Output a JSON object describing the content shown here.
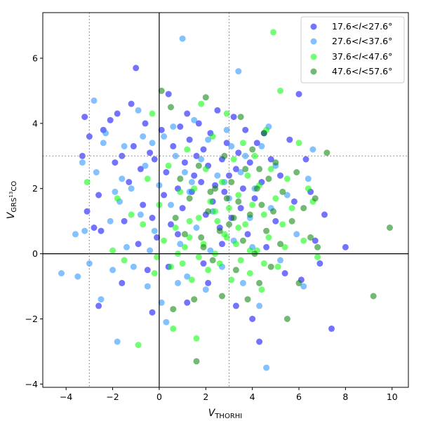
{
  "chart_data": {
    "type": "scatter",
    "xlabel": "V",
    "xlabel_sub": "THORHI",
    "ylabel": "V",
    "ylabel_sub": "GRS",
    "ylabel_sup": "13",
    "ylabel_sub2": "CO",
    "xlim": [
      -5,
      10.7
    ],
    "ylim": [
      -4.1,
      7.4
    ],
    "x_ticks": [
      -4,
      -2,
      0,
      2,
      4,
      6,
      8,
      10
    ],
    "y_ticks": [
      -4,
      -2,
      0,
      2,
      4,
      6
    ],
    "x_tick_labels": [
      "−4",
      "−2",
      "0",
      "2",
      "4",
      "6",
      "8",
      "10"
    ],
    "y_tick_labels": [
      "−4",
      "−2",
      "0",
      "2",
      "4",
      "6"
    ],
    "grid": false,
    "reference_lines": {
      "solid": {
        "x": 0,
        "y": 0
      },
      "dotted": {
        "x": [
          -3,
          3
        ],
        "y": 3
      }
    },
    "legend_placement": "top-right",
    "marker_alpha": 0.55,
    "series": [
      {
        "name": "17.6<l<27.6°",
        "legend_prefix": "17.6<",
        "legend_italic": "l",
        "legend_suffix": "<27.6°",
        "color": "#0000ff",
        "points": [
          [
            -3.2,
            4.2
          ],
          [
            -3.3,
            3.0
          ],
          [
            -3.1,
            1.3
          ],
          [
            -3.0,
            3.6
          ],
          [
            -2.8,
            0.8
          ],
          [
            -2.6,
            1.8
          ],
          [
            -2.5,
            0.7
          ],
          [
            -2.4,
            3.8
          ],
          [
            -2.1,
            4.1
          ],
          [
            -1.9,
            2.8
          ],
          [
            -1.8,
            4.3
          ],
          [
            -1.6,
            3.0
          ],
          [
            -1.5,
            1.0
          ],
          [
            -1.3,
            2.2
          ],
          [
            -1.2,
            4.6
          ],
          [
            -1.0,
            5.7
          ],
          [
            -1.1,
            3.3
          ],
          [
            -0.9,
            0.3
          ],
          [
            -0.8,
            2.6
          ],
          [
            -0.7,
            1.5
          ],
          [
            -0.6,
            4.0
          ],
          [
            -0.5,
            -0.5
          ],
          [
            -0.4,
            3.1
          ],
          [
            -0.3,
            1.1
          ],
          [
            -0.2,
            2.9
          ],
          [
            -0.1,
            0.5
          ],
          [
            0.1,
            3.8
          ],
          [
            0.2,
            1.8
          ],
          [
            0.3,
            2.5
          ],
          [
            0.4,
            4.9
          ],
          [
            0.5,
            0.9
          ],
          [
            0.6,
            3.3
          ],
          [
            0.8,
            2.0
          ],
          [
            0.9,
            3.9
          ],
          [
            1.0,
            1.4
          ],
          [
            1.1,
            2.8
          ],
          [
            1.2,
            4.3
          ],
          [
            1.3,
            3.5
          ],
          [
            1.4,
            1.9
          ],
          [
            1.5,
            2.4
          ],
          [
            1.6,
            3.0
          ],
          [
            1.7,
            4.0
          ],
          [
            1.8,
            2.2
          ],
          [
            1.9,
            3.2
          ],
          [
            2.0,
            1.2
          ],
          [
            2.1,
            2.7
          ],
          [
            2.2,
            3.7
          ],
          [
            2.3,
            1.6
          ],
          [
            2.4,
            2.1
          ],
          [
            2.5,
            4.4
          ],
          [
            2.6,
            0.8
          ],
          [
            2.7,
            2.9
          ],
          [
            2.8,
            1.9
          ],
          [
            2.9,
            3.4
          ],
          [
            3.0,
            2.4
          ],
          [
            3.1,
            1.1
          ],
          [
            3.2,
            4.2
          ],
          [
            3.3,
            2.6
          ],
          [
            3.4,
            3.1
          ],
          [
            3.5,
            1.4
          ],
          [
            3.6,
            2.0
          ],
          [
            3.7,
            3.8
          ],
          [
            3.8,
            0.6
          ],
          [
            3.9,
            2.8
          ],
          [
            4.0,
            -2.0
          ],
          [
            4.1,
            1.7
          ],
          [
            4.2,
            3.4
          ],
          [
            4.3,
            -2.7
          ],
          [
            4.4,
            2.2
          ],
          [
            4.5,
            3.7
          ],
          [
            4.6,
            0.2
          ],
          [
            4.8,
            2.9
          ],
          [
            5.0,
            1.0
          ],
          [
            5.2,
            2.4
          ],
          [
            5.4,
            -0.6
          ],
          [
            5.6,
            3.5
          ],
          [
            5.8,
            1.6
          ],
          [
            6.0,
            4.9
          ],
          [
            6.1,
            -0.8
          ],
          [
            6.3,
            2.9
          ],
          [
            6.5,
            1.9
          ],
          [
            6.7,
            0.4
          ],
          [
            6.9,
            -0.3
          ],
          [
            7.1,
            1.2
          ],
          [
            7.4,
            -2.3
          ],
          [
            8.0,
            0.2
          ],
          [
            0.4,
            -0.4
          ],
          [
            1.2,
            -1.5
          ],
          [
            2.1,
            -0.9
          ],
          [
            3.3,
            -1.6
          ],
          [
            1.9,
            -0.3
          ],
          [
            2.7,
            0.3
          ],
          [
            0.8,
            0.6
          ],
          [
            -0.3,
            -1.8
          ],
          [
            -2.6,
            -1.6
          ],
          [
            -1.6,
            -0.9
          ]
        ]
      },
      {
        "name": "27.6<l<37.6°",
        "legend_prefix": "27.6<",
        "legend_italic": "l",
        "legend_suffix": "<37.6°",
        "color": "#1e90ff",
        "points": [
          [
            -4.2,
            -0.6
          ],
          [
            -3.5,
            -0.7
          ],
          [
            -3.6,
            0.6
          ],
          [
            -3.3,
            2.8
          ],
          [
            -3.0,
            -0.3
          ],
          [
            -2.8,
            4.7
          ],
          [
            -2.7,
            2.5
          ],
          [
            -2.5,
            -1.4
          ],
          [
            -2.3,
            3.7
          ],
          [
            -2.1,
            1.0
          ],
          [
            -2.0,
            -0.5
          ],
          [
            -1.8,
            -2.7
          ],
          [
            -1.7,
            1.6
          ],
          [
            -1.5,
            3.3
          ],
          [
            -1.4,
            0.2
          ],
          [
            -1.2,
            2.0
          ],
          [
            -1.1,
            -0.4
          ],
          [
            -0.9,
            4.4
          ],
          [
            -0.8,
            1.2
          ],
          [
            -0.6,
            2.7
          ],
          [
            -0.5,
            -1.0
          ],
          [
            -0.3,
            3.4
          ],
          [
            -0.2,
            0.7
          ],
          [
            0.0,
            2.1
          ],
          [
            0.1,
            -1.5
          ],
          [
            0.2,
            3.6
          ],
          [
            0.3,
            -2.1
          ],
          [
            0.5,
            1.5
          ],
          [
            0.7,
            3.0
          ],
          [
            0.9,
            0.3
          ],
          [
            1.0,
            6.6
          ],
          [
            1.1,
            2.5
          ],
          [
            1.2,
            -0.7
          ],
          [
            1.3,
            1.9
          ],
          [
            1.5,
            4.1
          ],
          [
            1.6,
            0.8
          ],
          [
            1.8,
            2.9
          ],
          [
            2.0,
            -1.1
          ],
          [
            2.1,
            3.5
          ],
          [
            2.3,
            1.3
          ],
          [
            2.5,
            2.4
          ],
          [
            2.7,
            -0.4
          ],
          [
            2.9,
            3.8
          ],
          [
            3.0,
            1.7
          ],
          [
            3.2,
            0.4
          ],
          [
            3.4,
            5.6
          ],
          [
            3.5,
            2.5
          ],
          [
            3.6,
            -0.9
          ],
          [
            3.7,
            3.0
          ],
          [
            3.9,
            1.1
          ],
          [
            4.1,
            2.0
          ],
          [
            4.3,
            -1.6
          ],
          [
            4.4,
            3.3
          ],
          [
            4.6,
            -3.5
          ],
          [
            4.8,
            1.4
          ],
          [
            5.0,
            2.7
          ],
          [
            5.2,
            -0.2
          ],
          [
            5.5,
            1.8
          ],
          [
            5.9,
            0.6
          ],
          [
            6.2,
            -1.0
          ],
          [
            6.4,
            2.3
          ],
          [
            6.6,
            3.2
          ],
          [
            -3.2,
            0.7
          ],
          [
            -2.4,
            3.4
          ],
          [
            -1.6,
            2.3
          ],
          [
            -0.7,
            3.6
          ],
          [
            0.6,
            3.9
          ],
          [
            1.4,
            2.2
          ],
          [
            2.2,
            0.1
          ],
          [
            2.8,
            2.2
          ],
          [
            3.1,
            3.3
          ],
          [
            4.0,
            0.2
          ],
          [
            4.7,
            3.9
          ],
          [
            -1.9,
            1.9
          ],
          [
            -0.4,
            0.1
          ],
          [
            0.8,
            -0.9
          ]
        ]
      },
      {
        "name": "37.6<l<47.6°",
        "legend_prefix": "37.6<",
        "legend_italic": "l",
        "legend_suffix": "<47.6°",
        "color": "#00ff00",
        "points": [
          [
            -3.1,
            2.2
          ],
          [
            -2.0,
            0.1
          ],
          [
            -1.8,
            1.7
          ],
          [
            -1.5,
            -0.2
          ],
          [
            -1.2,
            1.2
          ],
          [
            -0.9,
            -2.8
          ],
          [
            -0.7,
            0.9
          ],
          [
            -0.5,
            2.3
          ],
          [
            -0.3,
            4.3
          ],
          [
            -0.2,
            -0.6
          ],
          [
            0.0,
            1.5
          ],
          [
            0.2,
            0.4
          ],
          [
            0.4,
            2.7
          ],
          [
            0.6,
            -2.3
          ],
          [
            0.7,
            0.8
          ],
          [
            0.9,
            1.9
          ],
          [
            1.0,
            -0.3
          ],
          [
            1.2,
            3.2
          ],
          [
            1.3,
            0.5
          ],
          [
            1.4,
            -0.8
          ],
          [
            1.5,
            2.0
          ],
          [
            1.6,
            -2.6
          ],
          [
            1.7,
            1.1
          ],
          [
            1.8,
            4.6
          ],
          [
            1.9,
            0.3
          ],
          [
            2.0,
            2.6
          ],
          [
            2.1,
            -0.5
          ],
          [
            2.2,
            1.6
          ],
          [
            2.3,
            3.6
          ],
          [
            2.4,
            0.0
          ],
          [
            2.5,
            1.0
          ],
          [
            2.6,
            -0.3
          ],
          [
            2.7,
            2.2
          ],
          [
            2.8,
            0.6
          ],
          [
            2.9,
            4.3
          ],
          [
            3.0,
            1.4
          ],
          [
            3.1,
            -0.8
          ],
          [
            3.2,
            2.9
          ],
          [
            3.3,
            0.3
          ],
          [
            3.4,
            1.8
          ],
          [
            3.5,
            -0.2
          ],
          [
            3.6,
            3.4
          ],
          [
            3.7,
            0.9
          ],
          [
            3.8,
            2.4
          ],
          [
            3.9,
            -0.6
          ],
          [
            4.0,
            1.5
          ],
          [
            4.1,
            3.0
          ],
          [
            4.2,
            0.1
          ],
          [
            4.3,
            2.1
          ],
          [
            4.4,
            -1.1
          ],
          [
            4.5,
            1.2
          ],
          [
            4.6,
            3.8
          ],
          [
            4.7,
            0.5
          ],
          [
            4.8,
            2.6
          ],
          [
            4.9,
            6.8
          ],
          [
            5.0,
            1.7
          ],
          [
            5.1,
            -0.4
          ],
          [
            5.2,
            5.0
          ],
          [
            5.3,
            0.9
          ],
          [
            5.5,
            2.3
          ],
          [
            5.7,
            1.4
          ],
          [
            6.0,
            3.4
          ],
          [
            6.2,
            0.4
          ],
          [
            6.4,
            2.0
          ],
          [
            6.6,
            1.6
          ],
          [
            6.8,
            -0.1
          ],
          [
            -0.1,
            -0.1
          ],
          [
            0.5,
            -0.4
          ],
          [
            1.1,
            0.2
          ],
          [
            1.7,
            -0.1
          ],
          [
            2.9,
            0.5
          ],
          [
            3.4,
            0.8
          ],
          [
            3.9,
            0.1
          ],
          [
            4.5,
            -0.3
          ],
          [
            5.4,
            0.2
          ],
          [
            2.4,
            1.3
          ],
          [
            1.3,
            1.0
          ],
          [
            0.8,
            0.0
          ]
        ]
      },
      {
        "name": "47.6<l<57.6°",
        "legend_prefix": "47.6<",
        "legend_italic": "l",
        "legend_suffix": "<57.6°",
        "color": "#008000",
        "points": [
          [
            0.1,
            5.0
          ],
          [
            0.5,
            4.5
          ],
          [
            0.6,
            -1.7
          ],
          [
            0.9,
            2.3
          ],
          [
            1.1,
            0.6
          ],
          [
            1.3,
            1.7
          ],
          [
            1.5,
            -1.4
          ],
          [
            1.7,
            2.7
          ],
          [
            1.9,
            0.2
          ],
          [
            2.0,
            4.8
          ],
          [
            2.1,
            1.3
          ],
          [
            2.3,
            -0.2
          ],
          [
            2.4,
            2.0
          ],
          [
            2.6,
            0.7
          ],
          [
            2.7,
            -1.3
          ],
          [
            2.8,
            3.0
          ],
          [
            3.0,
            0.9
          ],
          [
            3.1,
            2.2
          ],
          [
            3.3,
            -0.5
          ],
          [
            3.4,
            1.6
          ],
          [
            3.5,
            4.2
          ],
          [
            3.6,
            0.4
          ],
          [
            3.7,
            2.6
          ],
          [
            3.8,
            -1.4
          ],
          [
            3.9,
            1.2
          ],
          [
            4.0,
            3.2
          ],
          [
            4.1,
            0.0
          ],
          [
            4.2,
            2.0
          ],
          [
            4.3,
            -0.9
          ],
          [
            4.4,
            1.5
          ],
          [
            4.5,
            3.7
          ],
          [
            4.6,
            0.7
          ],
          [
            4.7,
            2.3
          ],
          [
            4.8,
            -0.4
          ],
          [
            4.9,
            1.3
          ],
          [
            5.0,
            2.8
          ],
          [
            5.2,
            0.3
          ],
          [
            5.3,
            1.9
          ],
          [
            5.5,
            -2.0
          ],
          [
            5.7,
            1.0
          ],
          [
            5.9,
            2.5
          ],
          [
            6.0,
            -0.9
          ],
          [
            6.2,
            1.4
          ],
          [
            6.5,
            0.5
          ],
          [
            6.7,
            1.7
          ],
          [
            6.8,
            0.2
          ],
          [
            7.2,
            3.1
          ],
          [
            9.2,
            -1.3
          ],
          [
            9.9,
            0.8
          ],
          [
            1.6,
            -3.3
          ],
          [
            2.2,
            1.9
          ],
          [
            3.2,
            1.1
          ],
          [
            4.3,
            2.6
          ],
          [
            2.9,
            1.7
          ],
          [
            1.8,
            0.5
          ],
          [
            0.7,
            1.1
          ]
        ]
      }
    ]
  }
}
